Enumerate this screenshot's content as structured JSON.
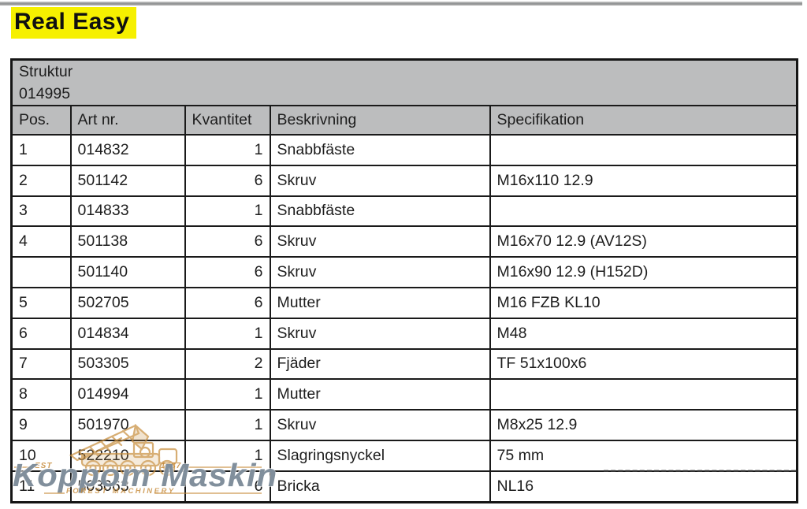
{
  "page": {
    "title": "Real Easy"
  },
  "parts_table": {
    "header": {
      "line1": "Struktur",
      "line2": "014995"
    },
    "columns": [
      "Pos.",
      "Art nr.",
      "Kvantitet",
      "Beskrivning",
      "Specifikation"
    ],
    "rows": [
      [
        "1",
        "014832",
        "1",
        "Snabbfäste",
        ""
      ],
      [
        "2",
        "501142",
        "6",
        "Skruv",
        "M16x110 12.9"
      ],
      [
        "3",
        "014833",
        "1",
        "Snabbfäste",
        ""
      ],
      [
        "4",
        "501138",
        "6",
        "Skruv",
        "M16x70 12.9 (AV12S)"
      ],
      [
        "",
        "501140",
        "6",
        "Skruv",
        "M16x90 12.9 (H152D)"
      ],
      [
        "5",
        "502705",
        "6",
        "Mutter",
        "M16 FZB KL10"
      ],
      [
        "6",
        "014834",
        "1",
        "Skruv",
        "M48"
      ],
      [
        "7",
        "503305",
        "2",
        "Fjäder",
        "TF 51x100x6"
      ],
      [
        "8",
        "014994",
        "1",
        "Mutter",
        ""
      ],
      [
        "9",
        "501970",
        "1",
        "Skruv",
        "M8x25 12.9"
      ],
      [
        "10",
        "522210",
        "1",
        "Slagringsnyckel",
        "75 mm"
      ],
      [
        "11",
        "503063",
        "6",
        "Bricka",
        "NL16"
      ]
    ]
  },
  "watermark": {
    "brand": "Koppom Maskin",
    "est_label": "EST",
    "year_label": "1987",
    "tagline": "FOREST MACHINERY",
    "logo_icon": "forestry-harvester-icon"
  },
  "colors": {
    "highlight_yellow": "#f6f000",
    "table_header_gray": "#bcbdbe",
    "border_black": "#1a1a1a",
    "watermark_orange": "#c68a38",
    "watermark_gray_blue": "#5e7080"
  }
}
